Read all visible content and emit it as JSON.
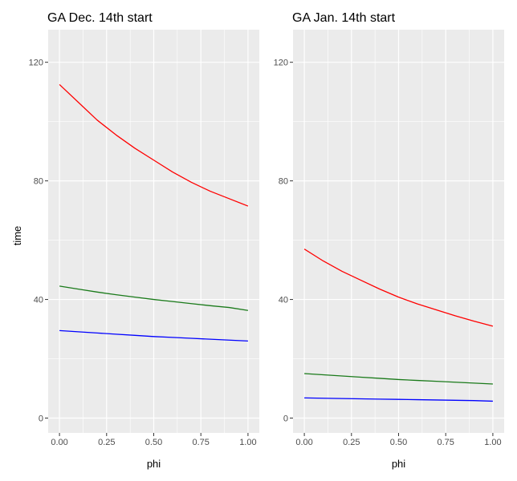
{
  "chart_data": [
    {
      "type": "line",
      "title": "GA Dec. 14th start",
      "xlabel": "phi",
      "ylabel": "time",
      "xlim": [
        -0.06,
        1.06
      ],
      "ylim": [
        -5,
        131
      ],
      "xticks": [
        0.0,
        0.25,
        0.5,
        0.75,
        1.0
      ],
      "xtick_labels": [
        "0.00",
        "0.25",
        "0.50",
        "0.75",
        "1.00"
      ],
      "yticks": [
        0,
        40,
        80,
        120
      ],
      "ytick_labels": [
        "0",
        "40",
        "80",
        "120"
      ],
      "grid": true,
      "legend": "none",
      "x": [
        0,
        0.1,
        0.2,
        0.3,
        0.4,
        0.5,
        0.6,
        0.7,
        0.8,
        0.9,
        1.0
      ],
      "series": [
        {
          "color": "#ff0000",
          "values": [
            112.5,
            106.5,
            100.5,
            95.5,
            91.0,
            87.0,
            83.0,
            79.5,
            76.5,
            74.0,
            71.5
          ]
        },
        {
          "color": "#1a7a1a",
          "values": [
            44.5,
            43.5,
            42.5,
            41.6,
            40.8,
            40.0,
            39.3,
            38.6,
            37.9,
            37.3,
            36.3
          ]
        },
        {
          "color": "#0000ff",
          "values": [
            29.5,
            29.1,
            28.7,
            28.3,
            27.9,
            27.5,
            27.2,
            26.9,
            26.6,
            26.3,
            26.0
          ]
        }
      ]
    },
    {
      "type": "line",
      "title": "GA Jan. 14th start",
      "xlabel": "phi",
      "ylabel": "",
      "xlim": [
        -0.06,
        1.06
      ],
      "ylim": [
        -5,
        131
      ],
      "xticks": [
        0.0,
        0.25,
        0.5,
        0.75,
        1.0
      ],
      "xtick_labels": [
        "0.00",
        "0.25",
        "0.50",
        "0.75",
        "1.00"
      ],
      "yticks": [
        0,
        40,
        80,
        120
      ],
      "ytick_labels": [
        "0",
        "40",
        "80",
        "120"
      ],
      "grid": true,
      "legend": "none",
      "x": [
        0,
        0.1,
        0.2,
        0.3,
        0.4,
        0.5,
        0.6,
        0.7,
        0.8,
        0.9,
        1.0
      ],
      "series": [
        {
          "color": "#ff0000",
          "values": [
            57.0,
            53.0,
            49.5,
            46.5,
            43.5,
            40.8,
            38.5,
            36.5,
            34.5,
            32.7,
            31.0
          ]
        },
        {
          "color": "#1a7a1a",
          "values": [
            15.0,
            14.6,
            14.2,
            13.8,
            13.4,
            13.0,
            12.7,
            12.4,
            12.1,
            11.8,
            11.5
          ]
        },
        {
          "color": "#0000ff",
          "values": [
            6.8,
            6.7,
            6.6,
            6.5,
            6.4,
            6.3,
            6.2,
            6.1,
            6.0,
            5.9,
            5.7
          ]
        }
      ]
    }
  ]
}
